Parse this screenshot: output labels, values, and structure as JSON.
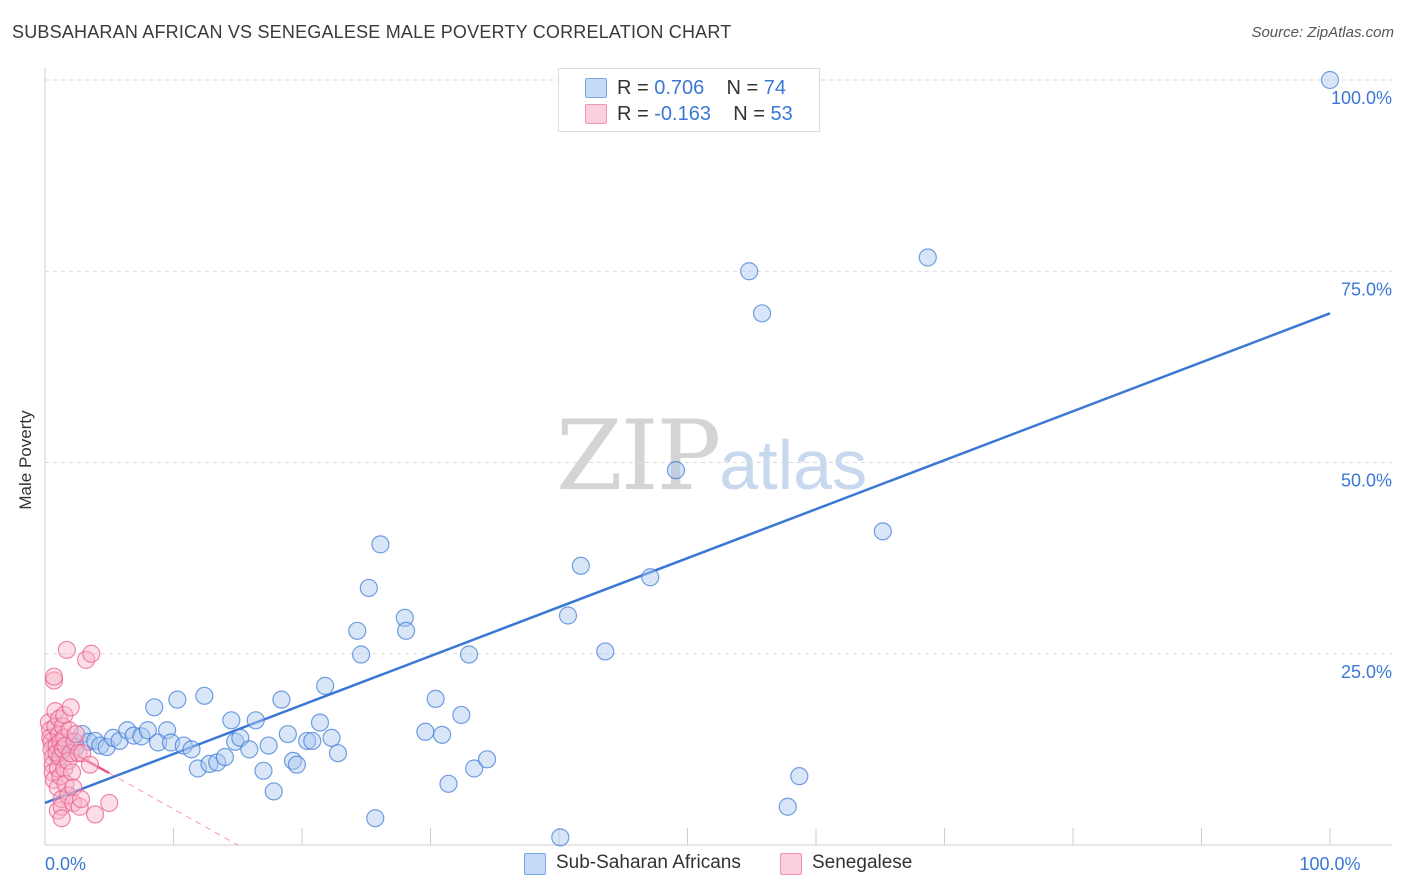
{
  "header": {
    "title": "SUBSAHARAN AFRICAN VS SENEGALESE MALE POVERTY CORRELATION CHART",
    "source": "Source: ZipAtlas.com"
  },
  "watermark": {
    "zip": "ZIP",
    "atlas": "atlas"
  },
  "legend": {
    "rows": [
      {
        "r_label": "R = ",
        "r_value": "0.706",
        "n_label": "N = ",
        "n_value": "74",
        "color": "#a8c8f0"
      },
      {
        "r_label": "R = ",
        "r_value": "-0.163",
        "n_label": "N = ",
        "n_value": "53",
        "color": "#f7b6c8"
      }
    ]
  },
  "bottom_legend": {
    "items": [
      {
        "label": "Sub-Saharan Africans",
        "color": "#a8c8f0"
      },
      {
        "label": "Senegalese",
        "color": "#f7b6c8"
      }
    ]
  },
  "chart_data": {
    "type": "scatter",
    "title": "SUBSAHARAN AFRICAN VS SENEGALESE MALE POVERTY CORRELATION CHART",
    "xlabel": "",
    "ylabel": "Male Poverty",
    "xlim": [
      0,
      100
    ],
    "ylim": [
      0,
      100
    ],
    "x_ticks": [
      {
        "value": 0,
        "label": "0.0%"
      },
      {
        "value": 100,
        "label": "100.0%"
      }
    ],
    "y_ticks": [
      {
        "value": 25,
        "label": "25.0%"
      },
      {
        "value": 50,
        "label": "50.0%"
      },
      {
        "value": 75,
        "label": "75.0%"
      },
      {
        "value": 100,
        "label": "100.0%"
      }
    ],
    "grid": true,
    "series": [
      {
        "name": "Sub-Saharan Africans",
        "color": "#3b78d6",
        "fill": "#a8c8f0",
        "trend": {
          "x": [
            0,
            100
          ],
          "y": [
            5.5,
            69.5
          ],
          "style": "solid"
        },
        "points": [
          [
            1.0,
            11.5
          ],
          [
            1.3,
            12.5
          ],
          [
            1.6,
            13.0
          ],
          [
            2.0,
            13.5
          ],
          [
            2.4,
            12.8
          ],
          [
            2.9,
            14.5
          ],
          [
            3.4,
            13.5
          ],
          [
            3.9,
            13.6
          ],
          [
            4.3,
            13.0
          ],
          [
            4.8,
            12.8
          ],
          [
            5.3,
            14.0
          ],
          [
            5.8,
            13.6
          ],
          [
            6.4,
            15.0
          ],
          [
            6.9,
            14.3
          ],
          [
            7.5,
            14.2
          ],
          [
            8.0,
            15.0
          ],
          [
            8.5,
            18.0
          ],
          [
            8.8,
            13.4
          ],
          [
            9.5,
            15.0
          ],
          [
            9.8,
            13.4
          ],
          [
            10.3,
            19.0
          ],
          [
            10.8,
            13.0
          ],
          [
            11.4,
            12.5
          ],
          [
            11.9,
            10.0
          ],
          [
            12.4,
            19.5
          ],
          [
            12.8,
            10.6
          ],
          [
            13.4,
            10.8
          ],
          [
            14.0,
            11.5
          ],
          [
            14.5,
            16.3
          ],
          [
            14.8,
            13.5
          ],
          [
            15.2,
            14.0
          ],
          [
            15.9,
            12.5
          ],
          [
            16.4,
            16.3
          ],
          [
            17.0,
            9.7
          ],
          [
            17.4,
            13.0
          ],
          [
            17.8,
            7.0
          ],
          [
            18.4,
            19.0
          ],
          [
            18.9,
            14.5
          ],
          [
            19.3,
            11.0
          ],
          [
            19.6,
            10.5
          ],
          [
            20.4,
            13.6
          ],
          [
            20.8,
            13.6
          ],
          [
            21.4,
            16.0
          ],
          [
            21.8,
            20.8
          ],
          [
            22.3,
            14.0
          ],
          [
            22.8,
            12.0
          ],
          [
            24.3,
            28.0
          ],
          [
            24.6,
            24.9
          ],
          [
            25.2,
            33.6
          ],
          [
            25.7,
            3.5
          ],
          [
            26.1,
            39.3
          ],
          [
            28.0,
            29.7
          ],
          [
            28.1,
            28.0
          ],
          [
            29.6,
            14.8
          ],
          [
            30.4,
            19.1
          ],
          [
            30.9,
            14.4
          ],
          [
            31.4,
            8.0
          ],
          [
            32.4,
            17.0
          ],
          [
            33.0,
            24.9
          ],
          [
            33.4,
            10.0
          ],
          [
            34.4,
            11.2
          ],
          [
            40.1,
            1.0
          ],
          [
            40.7,
            30.0
          ],
          [
            41.7,
            36.5
          ],
          [
            43.6,
            25.3
          ],
          [
            47.1,
            35.0
          ],
          [
            49.1,
            49.0
          ],
          [
            54.8,
            75.0
          ],
          [
            55.8,
            69.5
          ],
          [
            57.8,
            5.0
          ],
          [
            58.7,
            9.0
          ],
          [
            65.2,
            41.0
          ],
          [
            68.7,
            76.8
          ],
          [
            100.0,
            100.0
          ]
        ]
      },
      {
        "name": "Senegalese",
        "color": "#e8588e",
        "fill": "#f7b6c8",
        "trend": {
          "x": [
            0,
            5.0
          ],
          "y": [
            14.0,
            9.4
          ],
          "style": "solid",
          "extension": {
            "x": [
              5.0,
              15.0
            ],
            "y": [
              9.4,
              0
            ]
          }
        },
        "points": [
          [
            0.3,
            16.0
          ],
          [
            0.4,
            15.0
          ],
          [
            0.4,
            14.0
          ],
          [
            0.5,
            13.5
          ],
          [
            0.5,
            12.5
          ],
          [
            0.6,
            11.5
          ],
          [
            0.6,
            10.5
          ],
          [
            0.6,
            9.5
          ],
          [
            0.7,
            8.5
          ],
          [
            0.7,
            21.5
          ],
          [
            0.7,
            22.0
          ],
          [
            0.8,
            17.5
          ],
          [
            0.8,
            15.5
          ],
          [
            0.9,
            13.0
          ],
          [
            0.9,
            12.0
          ],
          [
            1.0,
            10.0
          ],
          [
            1.0,
            7.5
          ],
          [
            1.0,
            4.5
          ],
          [
            1.1,
            16.5
          ],
          [
            1.1,
            14.5
          ],
          [
            1.2,
            13.5
          ],
          [
            1.2,
            11.5
          ],
          [
            1.2,
            9.0
          ],
          [
            1.3,
            6.0
          ],
          [
            1.3,
            5.0
          ],
          [
            1.3,
            3.5
          ],
          [
            1.4,
            15.5
          ],
          [
            1.4,
            12.5
          ],
          [
            1.5,
            14.0
          ],
          [
            1.5,
            10.0
          ],
          [
            1.5,
            17.0
          ],
          [
            1.6,
            8.0
          ],
          [
            1.6,
            13.0
          ],
          [
            1.7,
            25.5
          ],
          [
            1.8,
            11.0
          ],
          [
            1.8,
            6.5
          ],
          [
            1.9,
            15.0
          ],
          [
            2.0,
            18.0
          ],
          [
            2.0,
            12.0
          ],
          [
            2.1,
            9.5
          ],
          [
            2.2,
            7.5
          ],
          [
            2.2,
            5.5
          ],
          [
            2.3,
            13.5
          ],
          [
            2.4,
            14.5
          ],
          [
            2.6,
            12.0
          ],
          [
            2.7,
            5.0
          ],
          [
            2.8,
            6.0
          ],
          [
            2.9,
            12.0
          ],
          [
            3.2,
            24.2
          ],
          [
            3.5,
            10.5
          ],
          [
            3.6,
            25.0
          ],
          [
            3.9,
            4.0
          ],
          [
            5.0,
            5.5
          ]
        ]
      }
    ]
  }
}
